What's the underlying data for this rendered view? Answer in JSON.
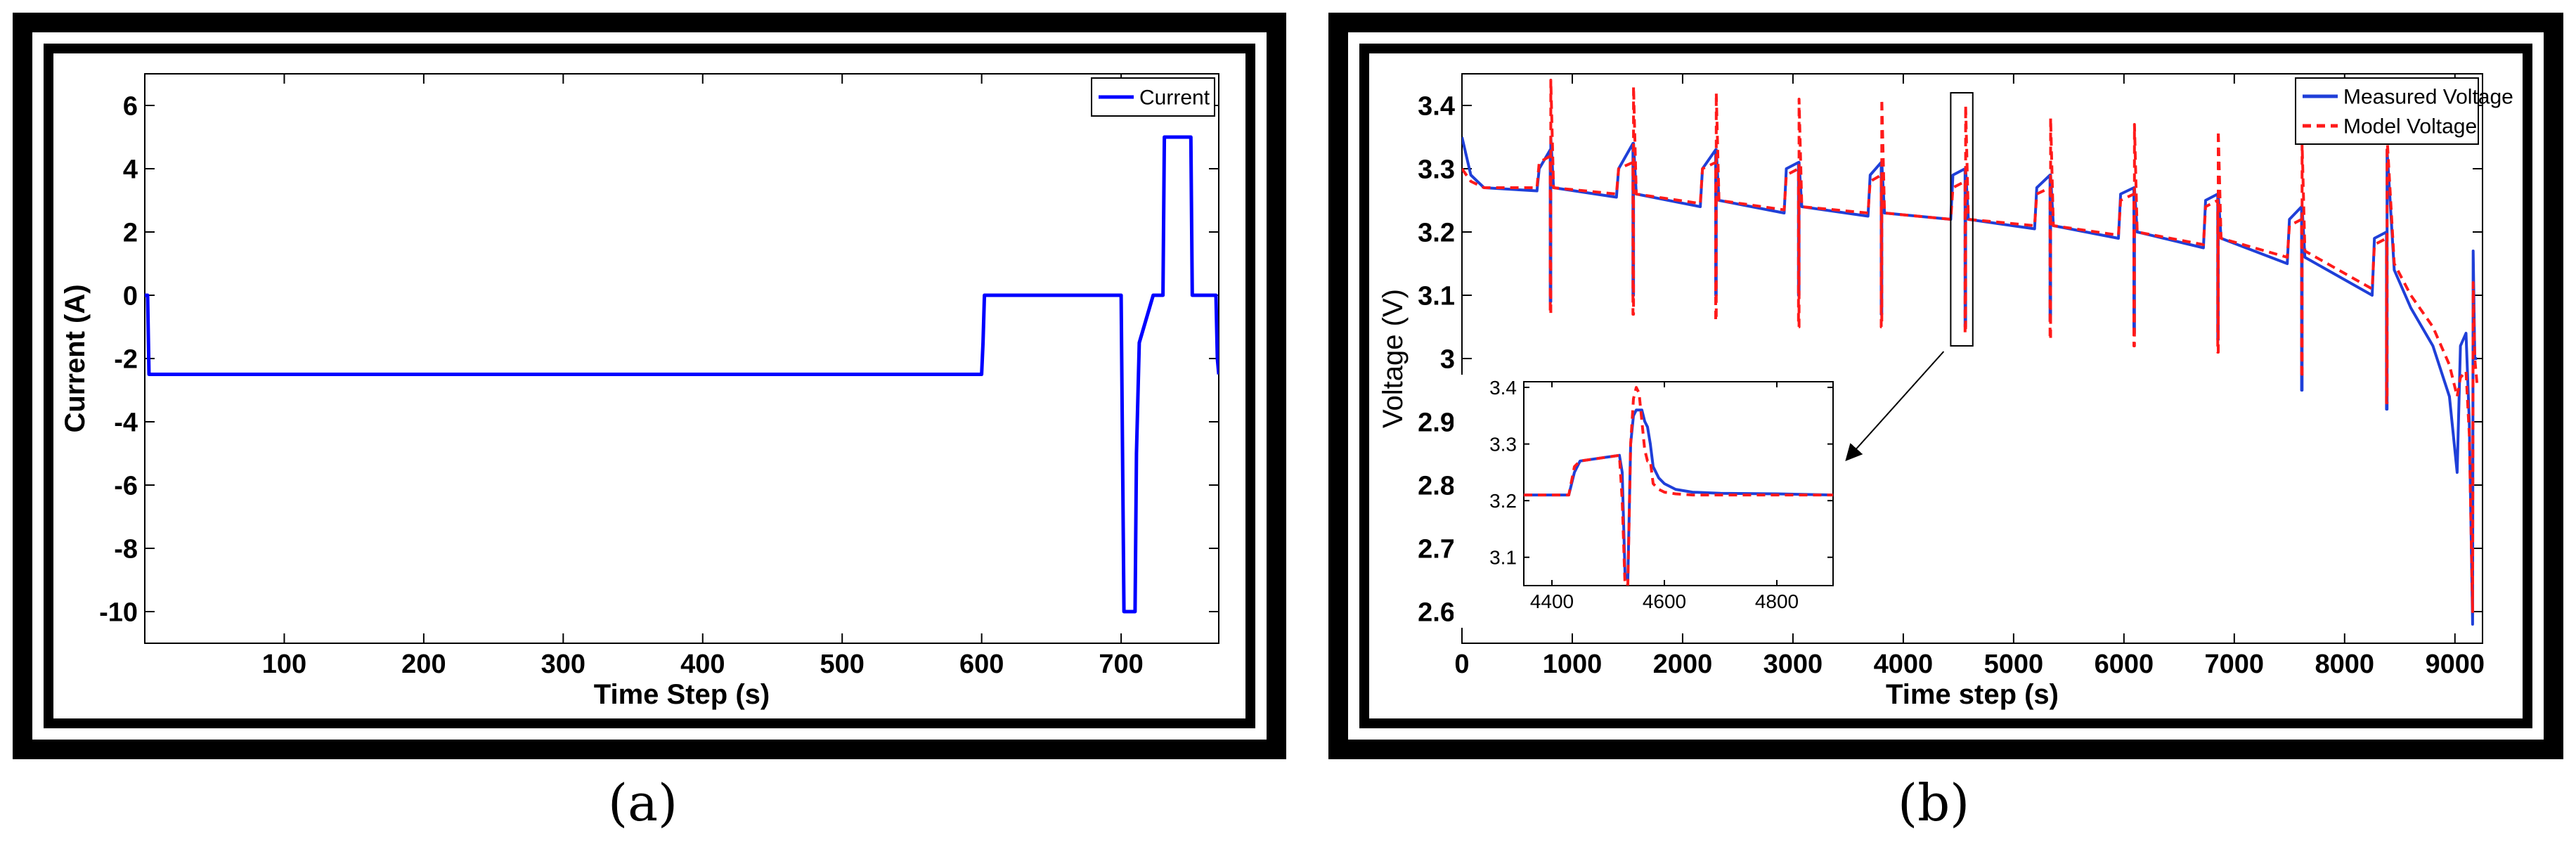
{
  "captions": {
    "a": "(a)",
    "b": "(b)"
  },
  "colors": {
    "current": "#0000ff",
    "measured": "#1f3fd8",
    "model": "#ff1a1a"
  },
  "chart_data": [
    {
      "type": "line",
      "xlabel": "Time Step (s)",
      "ylabel": "Current (A)",
      "xlim": [
        0,
        770
      ],
      "ylim": [
        -11,
        7
      ],
      "xticks": [
        100,
        200,
        300,
        400,
        500,
        600,
        700
      ],
      "yticks": [
        -10,
        -8,
        -6,
        -4,
        -2,
        0,
        2,
        4,
        6
      ],
      "legend_position": "top-right",
      "series": [
        {
          "name": "Current",
          "color": "#0000ff",
          "style": "solid",
          "x": [
            0,
            2,
            3,
            600,
            601,
            602,
            700,
            701,
            702,
            710,
            711,
            713,
            723,
            724,
            730,
            731,
            750,
            751,
            768,
            769,
            770
          ],
          "y": [
            0,
            0,
            -2.5,
            -2.5,
            -1.5,
            0,
            0,
            -5,
            -10,
            -10,
            -5,
            -1.5,
            0,
            0,
            0,
            5,
            5,
            0,
            0,
            -2,
            -2.5
          ]
        }
      ]
    },
    {
      "type": "line",
      "xlabel": "Time step (s)",
      "ylabel": "Voltage (V)",
      "xlim": [
        0,
        9250
      ],
      "ylim": [
        2.55,
        3.45
      ],
      "xticks": [
        0,
        1000,
        2000,
        3000,
        4000,
        5000,
        6000,
        7000,
        8000,
        9000
      ],
      "yticks": [
        2.6,
        2.7,
        2.8,
        2.9,
        3,
        3.1,
        3.2,
        3.3,
        3.4
      ],
      "legend_position": "top-right",
      "series": [
        {
          "name": "Measured Voltage",
          "color": "#1f3fd8",
          "style": "solid",
          "x": [
            0,
            80,
            200,
            680,
            700,
            800,
            800,
            805,
            805,
            830,
            1400,
            1420,
            1550,
            1550,
            1555,
            1555,
            1580,
            2160,
            2180,
            2300,
            2300,
            2305,
            2305,
            2330,
            2920,
            2940,
            3050,
            3050,
            3055,
            3055,
            3080,
            3680,
            3700,
            3800,
            3800,
            3805,
            3805,
            3830,
            4430,
            4450,
            4560,
            4560,
            4565,
            4565,
            4590,
            5190,
            5210,
            5330,
            5330,
            5335,
            5335,
            5360,
            5950,
            5970,
            6090,
            6090,
            6095,
            6095,
            6120,
            6720,
            6740,
            6850,
            6850,
            6855,
            6855,
            6880,
            7480,
            7500,
            7610,
            7610,
            7615,
            7615,
            7640,
            8250,
            8270,
            8380,
            8380,
            8385,
            8385,
            8450,
            8600,
            8800,
            8950,
            9020,
            9050,
            9100,
            9130,
            9160,
            9165,
            9180,
            9200
          ],
          "y": [
            3.35,
            3.29,
            3.27,
            3.265,
            3.3,
            3.33,
            3.09,
            3.09,
            3.35,
            3.27,
            3.255,
            3.3,
            3.34,
            3.1,
            3.1,
            3.34,
            3.26,
            3.24,
            3.3,
            3.33,
            3.1,
            3.1,
            3.33,
            3.25,
            3.23,
            3.3,
            3.31,
            3.1,
            3.1,
            3.31,
            3.24,
            3.225,
            3.29,
            3.31,
            3.07,
            3.07,
            3.31,
            3.23,
            3.22,
            3.29,
            3.3,
            3.05,
            3.05,
            3.3,
            3.22,
            3.205,
            3.27,
            3.29,
            3.06,
            3.06,
            3.29,
            3.21,
            3.19,
            3.26,
            3.27,
            3.04,
            3.04,
            3.27,
            3.2,
            3.175,
            3.25,
            3.26,
            3.03,
            3.03,
            3.26,
            3.19,
            3.15,
            3.22,
            3.24,
            2.95,
            2.95,
            3.24,
            3.16,
            3.1,
            3.19,
            3.2,
            2.92,
            2.92,
            3.33,
            3.14,
            3.08,
            3.02,
            2.94,
            2.82,
            3.02,
            3.04,
            2.9,
            2.58,
            3.17,
            3.0,
            3.0
          ]
        },
        {
          "name": "Model Voltage",
          "color": "#ff1a1a",
          "style": "dashed",
          "x": [
            0,
            80,
            200,
            680,
            700,
            800,
            800,
            805,
            805,
            830,
            1400,
            1420,
            1550,
            1550,
            1555,
            1555,
            1580,
            2160,
            2180,
            2300,
            2300,
            2305,
            2305,
            2330,
            2920,
            2940,
            3050,
            3050,
            3055,
            3055,
            3080,
            3680,
            3700,
            3800,
            3800,
            3805,
            3805,
            3830,
            4430,
            4450,
            4560,
            4560,
            4565,
            4565,
            4590,
            5190,
            5210,
            5330,
            5330,
            5335,
            5335,
            5360,
            5950,
            5970,
            6090,
            6090,
            6095,
            6095,
            6120,
            6720,
            6740,
            6850,
            6850,
            6855,
            6855,
            6880,
            7480,
            7500,
            7610,
            7610,
            7615,
            7615,
            7640,
            8250,
            8270,
            8380,
            8380,
            8385,
            8385,
            8450,
            8600,
            8800,
            8950,
            9020,
            9050,
            9100,
            9130,
            9160,
            9165,
            9180,
            9200
          ],
          "y": [
            3.3,
            3.28,
            3.27,
            3.27,
            3.31,
            3.32,
            3.07,
            3.07,
            3.44,
            3.27,
            3.26,
            3.3,
            3.31,
            3.07,
            3.07,
            3.43,
            3.26,
            3.245,
            3.3,
            3.31,
            3.06,
            3.06,
            3.42,
            3.25,
            3.235,
            3.29,
            3.3,
            3.05,
            3.05,
            3.41,
            3.24,
            3.23,
            3.28,
            3.29,
            3.05,
            3.05,
            3.41,
            3.23,
            3.22,
            3.27,
            3.28,
            3.04,
            3.04,
            3.4,
            3.22,
            3.21,
            3.26,
            3.27,
            3.03,
            3.03,
            3.38,
            3.21,
            3.195,
            3.25,
            3.26,
            3.02,
            3.02,
            3.37,
            3.2,
            3.18,
            3.24,
            3.25,
            3.01,
            3.01,
            3.36,
            3.19,
            3.16,
            3.21,
            3.22,
            2.97,
            2.97,
            3.34,
            3.17,
            3.11,
            3.18,
            3.19,
            2.93,
            2.93,
            3.35,
            3.15,
            3.1,
            3.05,
            2.99,
            2.94,
            2.97,
            2.98,
            2.88,
            2.6,
            3.12,
            3.0,
            2.96
          ]
        }
      ],
      "inset": {
        "xlim": [
          4350,
          4900
        ],
        "ylim": [
          3.05,
          3.41
        ],
        "xticks": [
          4400,
          4600,
          4800
        ],
        "yticks": [
          3.1,
          3.2,
          3.3,
          3.4
        ],
        "zoom_box_x": [
          4430,
          4630
        ],
        "zoom_box_y": [
          3.02,
          3.42
        ],
        "series": [
          {
            "name": "Measured Voltage",
            "color": "#1f3fd8",
            "style": "solid",
            "x": [
              4350,
              4400,
              4430,
              4440,
              4450,
              4520,
              4525,
              4530,
              4535,
              4540,
              4545,
              4550,
              4560,
              4565,
              4570,
              4575,
              4580,
              4590,
              4600,
              4620,
              4650,
              4700,
              4800,
              4900
            ],
            "y": [
              3.21,
              3.21,
              3.21,
              3.25,
              3.27,
              3.28,
              3.25,
              3.07,
              3.06,
              3.3,
              3.35,
              3.36,
              3.36,
              3.34,
              3.33,
              3.3,
              3.26,
              3.24,
              3.23,
              3.22,
              3.215,
              3.213,
              3.212,
              3.21
            ]
          },
          {
            "name": "Model Voltage",
            "color": "#ff1a1a",
            "style": "dashed",
            "x": [
              4350,
              4400,
              4430,
              4440,
              4450,
              4520,
              4525,
              4530,
              4535,
              4540,
              4545,
              4550,
              4555,
              4560,
              4565,
              4570,
              4575,
              4580,
              4590,
              4600,
              4620,
              4650,
              4700,
              4800,
              4900
            ],
            "y": [
              3.21,
              3.21,
              3.21,
              3.26,
              3.27,
              3.28,
              3.2,
              3.05,
              3.05,
              3.3,
              3.38,
              3.4,
              3.39,
              3.34,
              3.29,
              3.27,
              3.27,
              3.23,
              3.22,
              3.215,
              3.212,
              3.21,
              3.21,
              3.21,
              3.21
            ]
          }
        ]
      }
    }
  ]
}
